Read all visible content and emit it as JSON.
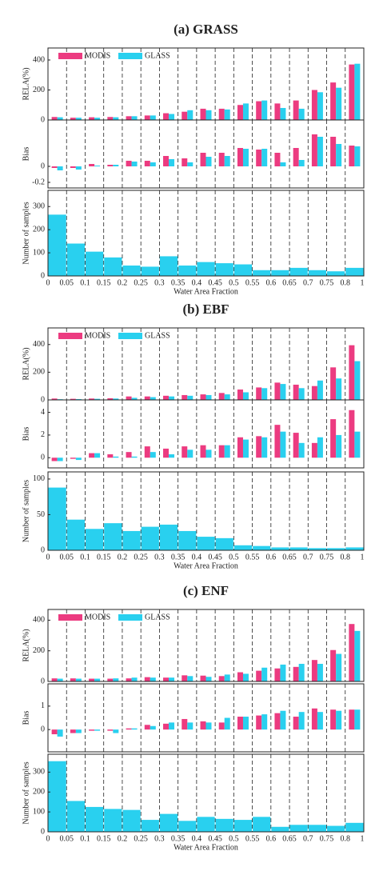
{
  "chart_data": [
    {
      "type": "bar",
      "title": "(a) GRASS",
      "ylabel": "RELA(%)",
      "ylim": [
        0,
        480
      ],
      "yticks": [
        0,
        200,
        400
      ],
      "legend": "upper left",
      "series": [
        {
          "name": "MODIS",
          "color": "#ec3b80",
          "values": [
            20,
            15,
            18,
            20,
            25,
            30,
            45,
            55,
            75,
            75,
            100,
            125,
            110,
            130,
            200,
            250,
            370
          ]
        },
        {
          "name": "GLASS",
          "color": "#29d0ef",
          "values": [
            18,
            15,
            15,
            18,
            25,
            30,
            40,
            65,
            65,
            70,
            110,
            130,
            80,
            75,
            185,
            215,
            375
          ]
        }
      ]
    },
    {
      "type": "bar",
      "ylabel": "Bias",
      "ylim": [
        -0.27,
        0.58
      ],
      "yticks": [
        -0.2,
        0
      ],
      "series": [
        {
          "name": "MODIS",
          "color": "#ec3b80",
          "values": [
            -0.02,
            -0.02,
            0.03,
            0.02,
            0.07,
            0.07,
            0.13,
            0.1,
            0.17,
            0.17,
            0.23,
            0.21,
            0.17,
            0.23,
            0.4,
            0.37,
            0.26
          ]
        },
        {
          "name": "GLASS",
          "color": "#29d0ef",
          "values": [
            -0.05,
            -0.04,
            0.01,
            0.02,
            0.06,
            0.05,
            0.09,
            0.05,
            0.12,
            0.13,
            0.22,
            0.22,
            0.05,
            0.08,
            0.37,
            0.28,
            0.25
          ]
        }
      ]
    },
    {
      "type": "histogram",
      "ylabel": "Number of samples",
      "xlabel": "Water Area Fraction",
      "ylim": [
        0,
        370
      ],
      "yticks": [
        0,
        100,
        200,
        300
      ],
      "color": "#29d0ef",
      "bins": [
        0,
        0.05,
        0.1,
        0.15,
        0.2,
        0.25,
        0.3,
        0.35,
        0.4,
        0.45,
        0.5,
        0.55,
        0.6,
        0.65,
        0.7,
        0.75,
        0.8,
        1
      ],
      "values": [
        265,
        140,
        105,
        80,
        45,
        40,
        85,
        45,
        60,
        55,
        50,
        25,
        25,
        35,
        25,
        20,
        35
      ]
    },
    {
      "type": "bar",
      "title": "(b) EBF",
      "ylabel": "RELA(%)",
      "ylim": [
        0,
        520
      ],
      "yticks": [
        0,
        200,
        400
      ],
      "legend": "upper left",
      "series": [
        {
          "name": "MODIS",
          "color": "#ec3b80",
          "values": [
            10,
            8,
            10,
            12,
            25,
            25,
            30,
            35,
            40,
            50,
            75,
            90,
            125,
            110,
            100,
            235,
            395
          ]
        },
        {
          "name": "GLASS",
          "color": "#29d0ef",
          "values": [
            5,
            6,
            8,
            10,
            15,
            20,
            25,
            30,
            35,
            40,
            55,
            85,
            115,
            85,
            140,
            155,
            280
          ]
        }
      ]
    },
    {
      "type": "bar",
      "ylabel": "Bias",
      "ylim": [
        -0.9,
        5.1
      ],
      "yticks": [
        0,
        2,
        4
      ],
      "series": [
        {
          "name": "MODIS",
          "color": "#ec3b80",
          "values": [
            -0.3,
            -0.1,
            0.4,
            0.3,
            0.5,
            1.0,
            0.8,
            1.0,
            1.1,
            1.1,
            1.8,
            1.9,
            2.9,
            2.2,
            1.3,
            3.4,
            4.2
          ]
        },
        {
          "name": "GLASS",
          "color": "#29d0ef",
          "values": [
            -0.3,
            -0.2,
            0.4,
            0.1,
            0.1,
            0.5,
            0.3,
            0.7,
            0.7,
            1.1,
            1.6,
            1.8,
            2.3,
            1.3,
            1.8,
            2.0,
            2.3
          ]
        }
      ]
    },
    {
      "type": "histogram",
      "ylabel": "Number of samples",
      "xlabel": "Water Area Fraction",
      "ylim": [
        0,
        110
      ],
      "yticks": [
        0,
        50,
        100
      ],
      "color": "#29d0ef",
      "bins": [
        0,
        0.05,
        0.1,
        0.15,
        0.2,
        0.25,
        0.3,
        0.35,
        0.4,
        0.45,
        0.5,
        0.55,
        0.6,
        0.65,
        0.7,
        0.75,
        0.8,
        1
      ],
      "values": [
        88,
        43,
        30,
        38,
        27,
        33,
        36,
        27,
        19,
        17,
        7,
        6,
        4,
        4,
        3,
        3,
        4
      ]
    },
    {
      "type": "bar",
      "title": "(c) ENF",
      "ylabel": "RELA(%)",
      "ylim": [
        0,
        470
      ],
      "yticks": [
        0,
        200,
        400
      ],
      "legend": "upper left",
      "series": [
        {
          "name": "MODIS",
          "color": "#ec3b80",
          "values": [
            20,
            20,
            18,
            18,
            20,
            28,
            25,
            40,
            38,
            35,
            60,
            70,
            85,
            95,
            140,
            205,
            375
          ]
        },
        {
          "name": "GLASS",
          "color": "#29d0ef",
          "values": [
            18,
            18,
            18,
            20,
            25,
            25,
            25,
            35,
            30,
            45,
            50,
            90,
            110,
            115,
            115,
            180,
            330
          ]
        }
      ]
    },
    {
      "type": "bar",
      "ylabel": "Bias",
      "ylim": [
        -0.95,
        1.95
      ],
      "yticks": [
        0,
        1
      ],
      "series": [
        {
          "name": "MODIS",
          "color": "#ec3b80",
          "values": [
            -0.2,
            -0.15,
            -0.05,
            -0.05,
            0.05,
            0.2,
            0.25,
            0.45,
            0.35,
            0.3,
            0.55,
            0.6,
            0.7,
            0.55,
            0.9,
            0.85,
            0.85
          ]
        },
        {
          "name": "GLASS",
          "color": "#29d0ef",
          "values": [
            -0.3,
            -0.15,
            -0.05,
            -0.15,
            0.05,
            0.15,
            0.3,
            0.3,
            0.3,
            0.5,
            0.55,
            0.65,
            0.8,
            0.75,
            0.75,
            0.8,
            0.85
          ]
        }
      ]
    },
    {
      "type": "histogram",
      "ylabel": "Number of samples",
      "xlabel": "Water Area Fraction",
      "ylim": [
        0,
        390
      ],
      "yticks": [
        0,
        100,
        200,
        300
      ],
      "color": "#29d0ef",
      "bins": [
        0,
        0.05,
        0.1,
        0.15,
        0.2,
        0.25,
        0.3,
        0.35,
        0.4,
        0.45,
        0.5,
        0.55,
        0.6,
        0.65,
        0.7,
        0.75,
        0.8,
        1
      ],
      "values": [
        355,
        155,
        125,
        115,
        110,
        60,
        90,
        55,
        75,
        65,
        60,
        75,
        25,
        35,
        35,
        30,
        45
      ]
    }
  ]
}
